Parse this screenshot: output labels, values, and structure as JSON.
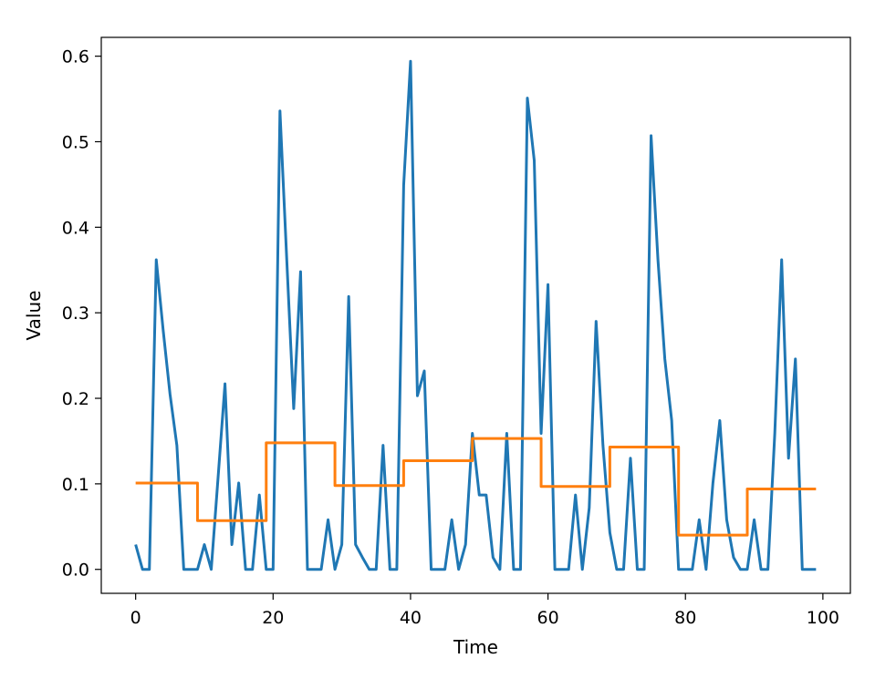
{
  "chart_data": {
    "type": "line",
    "xlabel": "Time",
    "ylabel": "Value",
    "xlim": [
      -5,
      104
    ],
    "ylim": [
      -0.028,
      0.622
    ],
    "xticks": [
      0,
      20,
      40,
      60,
      80,
      100
    ],
    "yticks": [
      0.0,
      0.1,
      0.2,
      0.3,
      0.4,
      0.5,
      0.6
    ],
    "grid": false,
    "series": [
      {
        "color": "#1f77b4",
        "kind": "line",
        "x": [
          0,
          1,
          2,
          3,
          4,
          5,
          6,
          7,
          8,
          9,
          10,
          11,
          12,
          13,
          14,
          15,
          16,
          17,
          18,
          19,
          20,
          21,
          22,
          23,
          24,
          25,
          26,
          27,
          28,
          29,
          30,
          31,
          32,
          33,
          34,
          35,
          36,
          37,
          38,
          39,
          40,
          41,
          42,
          43,
          44,
          45,
          46,
          47,
          48,
          49,
          50,
          51,
          52,
          53,
          54,
          55,
          56,
          57,
          58,
          59,
          60,
          61,
          62,
          63,
          64,
          65,
          66,
          67,
          68,
          69,
          70,
          71,
          72,
          73,
          74,
          75,
          76,
          77,
          78,
          79,
          80,
          81,
          82,
          83,
          84,
          85,
          86,
          87,
          88,
          89,
          90,
          91,
          92,
          93,
          94,
          95,
          96,
          97,
          98,
          99
        ],
        "y": [
          0.029,
          0.0,
          0.0,
          0.362,
          0.28,
          0.205,
          0.145,
          0.0,
          0.0,
          0.0,
          0.029,
          0.0,
          0.108,
          0.217,
          0.029,
          0.101,
          0.0,
          0.0,
          0.087,
          0.0,
          0.0,
          0.536,
          0.36,
          0.188,
          0.348,
          0.0,
          0.0,
          0.0,
          0.058,
          0.0,
          0.029,
          0.319,
          0.029,
          0.014,
          0.0,
          0.0,
          0.145,
          0.0,
          0.0,
          0.449,
          0.594,
          0.203,
          0.232,
          0.0,
          0.0,
          0.0,
          0.058,
          0.0,
          0.029,
          0.159,
          0.087,
          0.087,
          0.014,
          0.0,
          0.159,
          0.0,
          0.0,
          0.551,
          0.478,
          0.159,
          0.333,
          0.0,
          0.0,
          0.0,
          0.087,
          0.0,
          0.072,
          0.29,
          0.145,
          0.043,
          0.0,
          0.0,
          0.13,
          0.0,
          0.0,
          0.507,
          0.362,
          0.246,
          0.174,
          0.0,
          0.0,
          0.0,
          0.058,
          0.0,
          0.101,
          0.174,
          0.058,
          0.014,
          0.0,
          0.0,
          0.058,
          0.0,
          0.0,
          0.159,
          0.362,
          0.13,
          0.246,
          0.0,
          0.0,
          0.0
        ]
      },
      {
        "color": "#ff7f0e",
        "kind": "step-mean",
        "x": [
          0,
          9,
          9,
          19,
          19,
          29,
          29,
          39,
          39,
          49,
          49,
          59,
          59,
          69,
          69,
          79,
          79,
          89,
          89,
          99
        ],
        "y": [
          0.101,
          0.101,
          0.057,
          0.057,
          0.148,
          0.148,
          0.098,
          0.098,
          0.127,
          0.127,
          0.153,
          0.153,
          0.097,
          0.097,
          0.143,
          0.143,
          0.04,
          0.04,
          0.094,
          0.094
        ]
      }
    ]
  }
}
